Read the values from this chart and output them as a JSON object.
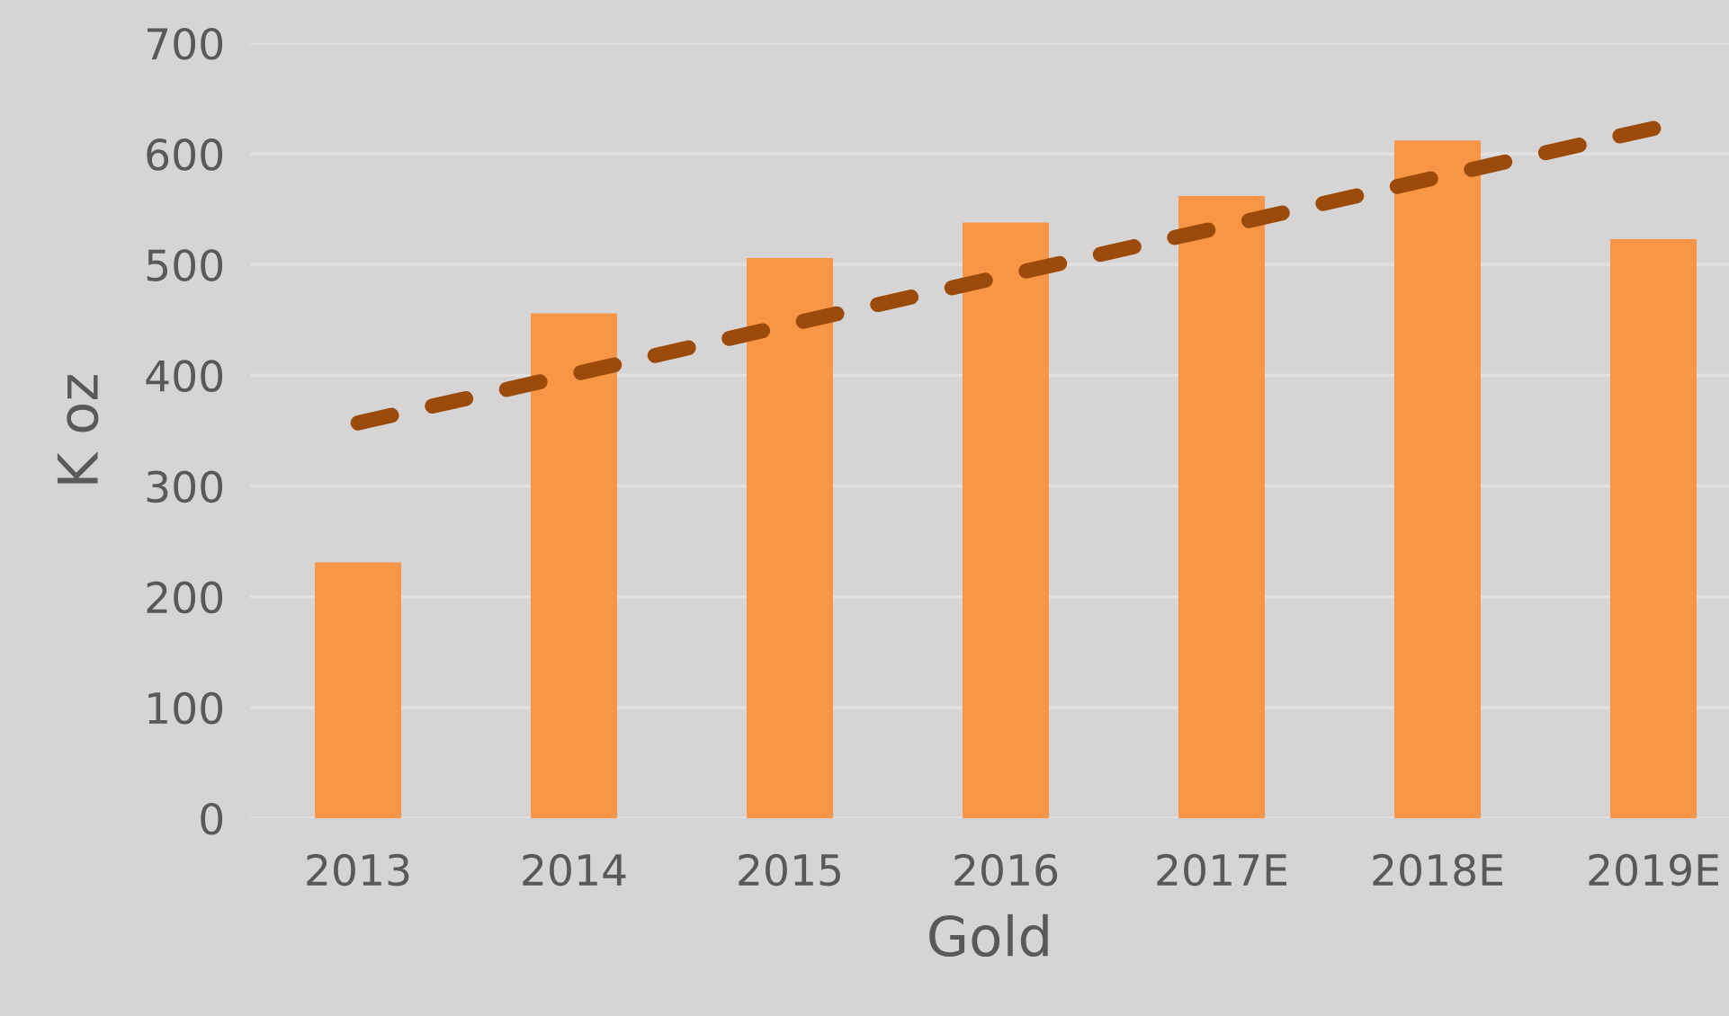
{
  "chart_data": {
    "type": "bar",
    "xlabel": "Gold",
    "ylabel": "K oz",
    "categories": [
      "2013",
      "2014",
      "2015",
      "2016",
      "2017E",
      "2018E",
      "2019E"
    ],
    "series": [
      {
        "color": "#f79646",
        "values": [
          231,
          456,
          506,
          538,
          562,
          612,
          523
        ]
      },
      {
        "type": "line",
        "color": "#9c4a09",
        "values": [
          357,
          401,
          446,
          490,
          534,
          579,
          623
        ],
        "line_style": "dashed"
      }
    ],
    "ylim": [
      0,
      700
    ],
    "yticks": [
      0,
      100,
      200,
      300,
      400,
      500,
      600,
      700
    ],
    "grid": "y",
    "legend": false
  }
}
